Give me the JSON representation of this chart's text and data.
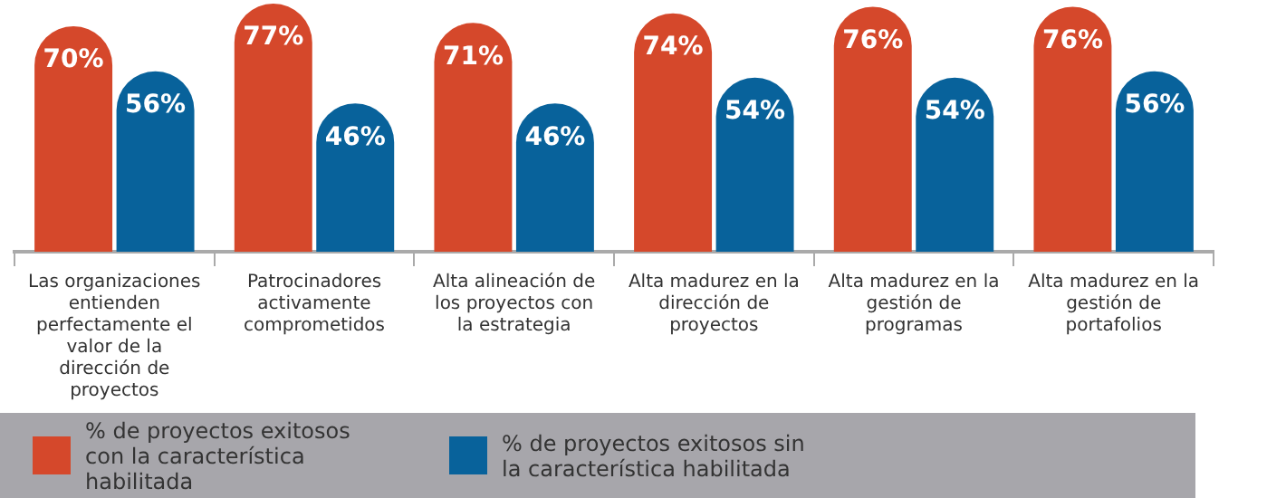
{
  "chart_data": {
    "type": "bar",
    "categories": [
      "Las organizaciones entienden perfectamente el valor de la dirección de proyectos",
      "Patrocinadores activamente comprometidos",
      "Alta alineación de los proyectos con la estrategia",
      "Alta madurez en la dirección de proyectos",
      "Alta madurez en la gestión de programas",
      "Alta madurez en la gestión de portafolios"
    ],
    "series": [
      {
        "name": "% de proyectos exitosos con la característica habilitada",
        "color": "#d5482b",
        "values": [
          70,
          77,
          71,
          74,
          76,
          76
        ],
        "value_labels": [
          "70%",
          "77%",
          "71%",
          "74%",
          "76%",
          "76%"
        ]
      },
      {
        "name": "% de proyectos exitosos sin la característica habilitada",
        "color": "#08629b",
        "values": [
          56,
          46,
          46,
          54,
          54,
          56
        ],
        "value_labels": [
          "56%",
          "46%",
          "46%",
          "54%",
          "54%",
          "56%"
        ]
      }
    ],
    "legend": "bottom"
  }
}
